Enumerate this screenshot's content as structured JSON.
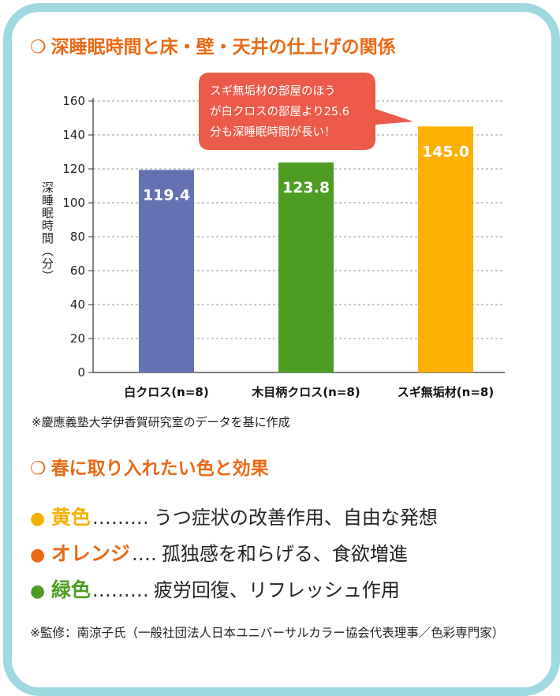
{
  "chart_section": {
    "mark": "❍",
    "title": "深睡眠時間と床・壁・天井の仕上げの関係"
  },
  "chart_data": {
    "type": "bar",
    "title": "深睡眠時間と床・壁・天井の仕上げの関係",
    "ylabel": "深睡眠時間（分）",
    "xlabel": "",
    "categories": [
      "白クロス(n=8)",
      "木目柄クロス(n=8)",
      "スギ無垢材(n=8)"
    ],
    "values": [
      119.4,
      123.8,
      145.0
    ],
    "value_labels": [
      "119.4",
      "123.8",
      "145.0"
    ],
    "bar_colors": [
      "#6472b1",
      "#4e9d22",
      "#fbb002"
    ],
    "ylim": [
      0,
      160
    ],
    "yticks": [
      0,
      20,
      40,
      60,
      80,
      100,
      120,
      140,
      160
    ],
    "grid": true,
    "callout": {
      "lines": [
        "スギ無垢材の部屋のほう",
        "が白クロスの部屋より25.6",
        "分も深睡眠時間が長い！"
      ],
      "color": "#ec5a4a"
    }
  },
  "source_note": "※慶應義塾大学伊香賀研究室のデータを基に作成",
  "colors_section": {
    "mark": "❍",
    "title": "春に取り入れたい色と効果",
    "items": [
      {
        "dot": "●",
        "name": "黄色",
        "leader": "………",
        "effect": "うつ症状の改善作用、自由な発想",
        "color": "#f6b008"
      },
      {
        "dot": "●",
        "name": "オレンジ",
        "leader": "‥‥",
        "effect": "孤独感を和らげる、食欲増進",
        "color": "#ea6a16"
      },
      {
        "dot": "●",
        "name": "緑色",
        "leader": "………",
        "effect": "疲労回復、リフレッシュ作用",
        "color": "#4e9d22"
      }
    ]
  },
  "supervision": "※監修：南涼子氏（一般社団法人日本ユニバーサルカラー協会代表理事／色彩専門家）",
  "theme": {
    "accent": "#ea6a16",
    "frame": "#9ed8e0"
  }
}
